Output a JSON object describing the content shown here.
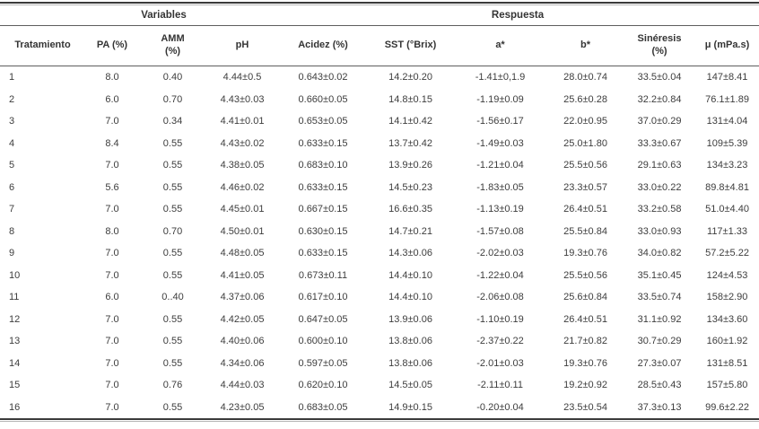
{
  "colors": {
    "background": "#ffffff",
    "text": "#3d3d3d",
    "header_text": "#343434",
    "rule_dark": "#3a3a3a",
    "rule_light": "#b8b8b8",
    "header_rule": "#5e5e5e"
  },
  "chart_data": {
    "type": "table",
    "group_headers": [
      {
        "key": "variables",
        "label": "Variables",
        "colspan": 2
      },
      {
        "key": "respuesta",
        "label": "Respuesta",
        "colspan": 7
      }
    ],
    "columns": [
      {
        "key": "tratamiento",
        "label": "Tratamiento"
      },
      {
        "key": "pa",
        "label": "PA (%)"
      },
      {
        "key": "amm",
        "label": "AMM\n(%)"
      },
      {
        "key": "ph",
        "label": "pH"
      },
      {
        "key": "acidez",
        "label": "Acidez (%)"
      },
      {
        "key": "sst",
        "label": "SST (°Brix)"
      },
      {
        "key": "a-star",
        "label": "a*"
      },
      {
        "key": "b-star",
        "label": "b*"
      },
      {
        "key": "sineresis",
        "label": "Sinéresis\n(%)"
      },
      {
        "key": "mu",
        "label": "μ (mPa.s)"
      }
    ],
    "rows": [
      [
        "1",
        "8.0",
        "0.40",
        "4.44±0.5",
        "0.643±0.02",
        "14.2±0.20",
        "-1.41±0,1.9",
        "28.0±0.74",
        "33.5±0.04",
        "147±8.41"
      ],
      [
        "2",
        "6.0",
        "0.70",
        "4.43±0.03",
        "0.660±0.05",
        "14.8±0.15",
        "-1.19±0.09",
        "25.6±0.28",
        "32.2±0.84",
        "76.1±1.89"
      ],
      [
        "3",
        "7.0",
        "0.34",
        "4.41±0.01",
        "0.653±0.05",
        "14.1±0.42",
        "-1.56±0.17",
        "22.0±0.95",
        "37.0±0.29",
        "131±4.04"
      ],
      [
        "4",
        "8.4",
        "0.55",
        "4.43±0.02",
        "0.633±0.15",
        "13.7±0.42",
        "-1.49±0.03",
        "25.0±1.80",
        "33.3±0.67",
        "109±5.39"
      ],
      [
        "5",
        "7.0",
        "0.55",
        "4.38±0.05",
        "0.683±0.10",
        "13.9±0.26",
        "-1.21±0.04",
        "25.5±0.56",
        "29.1±0.63",
        "134±3.23"
      ],
      [
        "6",
        "5.6",
        "0.55",
        "4.46±0.02",
        "0.633±0.15",
        "14.5±0.23",
        "-1.83±0.05",
        "23.3±0.57",
        "33.0±0.22",
        "89.8±4.81"
      ],
      [
        "7",
        "7.0",
        "0.55",
        "4.45±0.01",
        "0.667±0.15",
        "16.6±0.35",
        "-1.13±0.19",
        "26.4±0.51",
        "33.2±0.58",
        "51.0±4.40"
      ],
      [
        "8",
        "8.0",
        "0.70",
        "4.50±0.01",
        "0.630±0.15",
        "14.7±0.21",
        "-1.57±0.08",
        "25.5±0.84",
        "33.0±0.93",
        "117±1.33"
      ],
      [
        "9",
        "7.0",
        "0.55",
        "4.48±0.05",
        "0.633±0.15",
        "14.3±0.06",
        "-2.02±0.03",
        "19.3±0.76",
        "34.0±0.82",
        "57.2±5.22"
      ],
      [
        "10",
        "7.0",
        "0.55",
        "4.41±0.05",
        "0.673±0.11",
        "14.4±0.10",
        "-1.22±0.04",
        "25.5±0.56",
        "35.1±0.45",
        "124±4.53"
      ],
      [
        "11",
        "6.0",
        "0..40",
        "4.37±0.06",
        "0.617±0.10",
        "14.4±0.10",
        "-2.06±0.08",
        "25.6±0.84",
        "33.5±0.74",
        "158±2.90"
      ],
      [
        "12",
        "7.0",
        "0.55",
        "4.42±0.05",
        "0.647±0.05",
        "13.9±0.06",
        "-1.10±0.19",
        "26.4±0.51",
        "31.1±0.92",
        "134±3.60"
      ],
      [
        "13",
        "7.0",
        "0.55",
        "4.40±0.06",
        "0.600±0.10",
        "13.8±0.06",
        "-2.37±0.22",
        "21.7±0.82",
        "30.7±0.29",
        "160±1.92"
      ],
      [
        "14",
        "7.0",
        "0.55",
        "4.34±0.06",
        "0.597±0.05",
        "13.8±0.06",
        "-2.01±0.03",
        "19.3±0.76",
        "27.3±0.07",
        "131±8.51"
      ],
      [
        "15",
        "7.0",
        "0.76",
        "4.44±0.03",
        "0.620±0.10",
        "14.5±0.05",
        "-2.11±0.11",
        "19.2±0.92",
        "28.5±0.43",
        "157±5.80"
      ],
      [
        "16",
        "7.0",
        "0.55",
        "4.23±0.05",
        "0.683±0.05",
        "14.9±0.15",
        "-0.20±0.04",
        "23.5±0.54",
        "37.3±0.13",
        "99.6±2.22"
      ]
    ]
  }
}
